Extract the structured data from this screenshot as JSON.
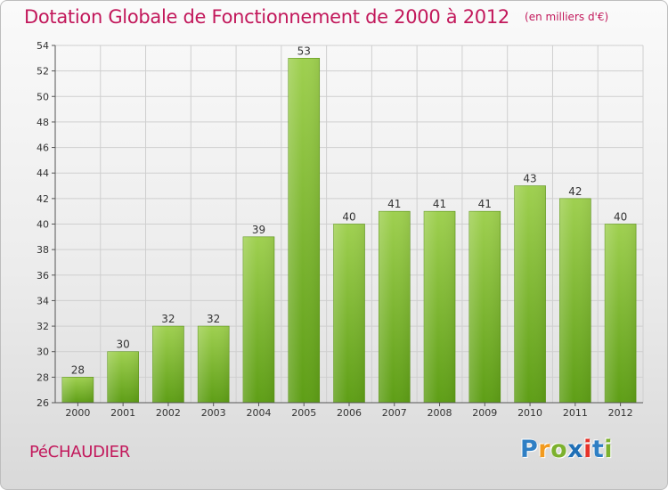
{
  "header": {
    "title": "Dotation Globale de Fonctionnement de 2000 à 2012",
    "unit": "(en milliers d'€)"
  },
  "footer": {
    "commune": "PéCHAUDIER",
    "logo_letters": [
      "P",
      "r",
      "o",
      "x",
      "i",
      "t",
      "i"
    ]
  },
  "chart_data": {
    "type": "bar",
    "title": "Dotation Globale de Fonctionnement de 2000 à 2012",
    "subtitle": "(en milliers d'€)",
    "xlabel": "",
    "ylabel": "",
    "categories": [
      "2000",
      "2001",
      "2002",
      "2003",
      "2004",
      "2005",
      "2006",
      "2007",
      "2008",
      "2009",
      "2010",
      "2011",
      "2012"
    ],
    "values": [
      28,
      30,
      32,
      32,
      39,
      53,
      40,
      41,
      41,
      41,
      43,
      42,
      40
    ],
    "ylim": [
      26,
      54
    ],
    "yticks": [
      26,
      28,
      30,
      32,
      34,
      36,
      38,
      40,
      42,
      44,
      46,
      48,
      50,
      52,
      54
    ],
    "grid": true,
    "legend": "none",
    "colors": {
      "bar_top": "#9fd050",
      "bar_bottom": "#5e9e16",
      "grid": "#cfcfcf",
      "title": "#c2185b"
    }
  }
}
